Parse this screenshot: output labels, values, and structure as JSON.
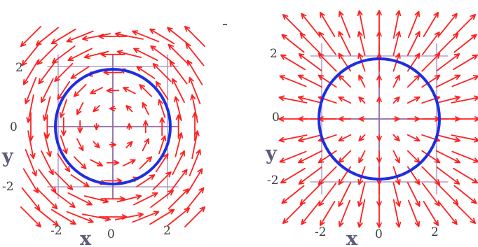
{
  "panels": [
    {
      "field": "rotational",
      "x_ticks": [
        "-2",
        "0",
        "2"
      ],
      "y_ticks": [
        "2",
        "0",
        "-2"
      ],
      "x_label": "x",
      "y_label": "y",
      "circle_radius": 2,
      "range": [
        -2.4,
        2.4
      ]
    },
    {
      "field": "radial",
      "x_ticks": [
        "-2",
        "0",
        "2"
      ],
      "y_ticks": [
        "2",
        "0",
        "-2"
      ],
      "x_label": "x",
      "y_label": "y",
      "circle_radius": 2,
      "range": [
        -2.4,
        2.4
      ]
    }
  ],
  "colors": {
    "arrows": "#ff2020",
    "curve": "#1f2ee0",
    "grid": "#a48bbd"
  }
}
